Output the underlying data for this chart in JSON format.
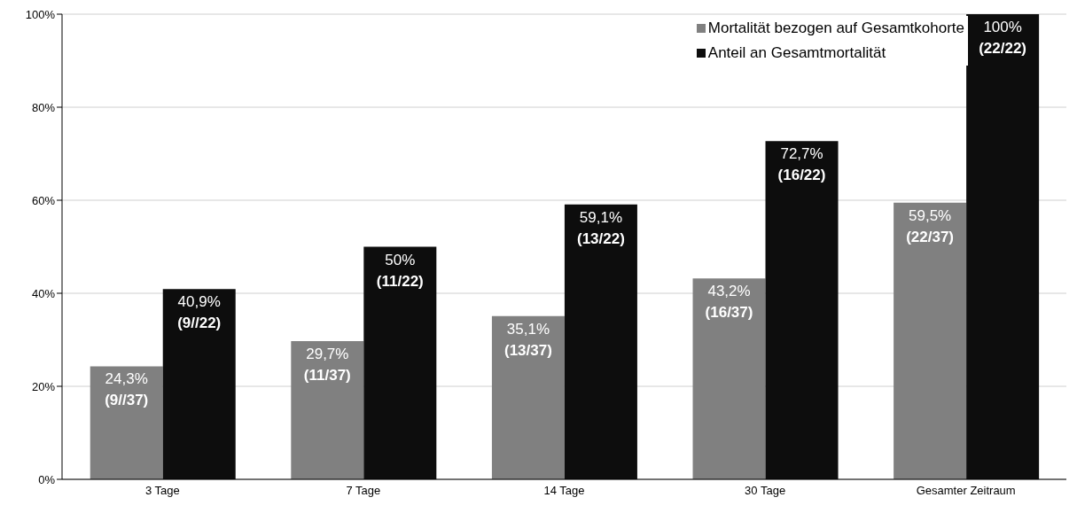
{
  "chart_data": {
    "type": "bar",
    "categories": [
      "3 Tage",
      "7 Tage",
      "14 Tage",
      "30 Tage",
      "Gesamter Zeitraum"
    ],
    "series": [
      {
        "name": "Mortalität bezogen auf Gesamtkohorte",
        "color": "#808080",
        "values": [
          24.3,
          29.7,
          35.1,
          43.2,
          59.5
        ],
        "value_labels": [
          "24,3%\n(9//37)",
          "29,7%\n(11/37)",
          "35,1%\n(13/37)",
          "43,2%\n(16/37)",
          "59,5%\n(22/37)"
        ]
      },
      {
        "name": "Anteil an Gesamtmortalität",
        "color": "#0d0d0d",
        "values": [
          40.9,
          50,
          59.1,
          72.7,
          100
        ],
        "value_labels": [
          "40,9%\n(9//22)",
          "50%\n(11/22)",
          "59,1%\n(13/22)",
          "72,7%\n(16/22)",
          "100%\n(22/22)"
        ]
      }
    ],
    "ylim": [
      0,
      100
    ],
    "yticks": [
      {
        "value": 0,
        "label": "0%"
      },
      {
        "value": 20,
        "label": "20%"
      },
      {
        "value": 40,
        "label": "40%"
      },
      {
        "value": 60,
        "label": "60%"
      },
      {
        "value": 80,
        "label": "80%"
      },
      {
        "value": 100,
        "label": "100%"
      }
    ],
    "grid": "y",
    "legend": "top right"
  }
}
